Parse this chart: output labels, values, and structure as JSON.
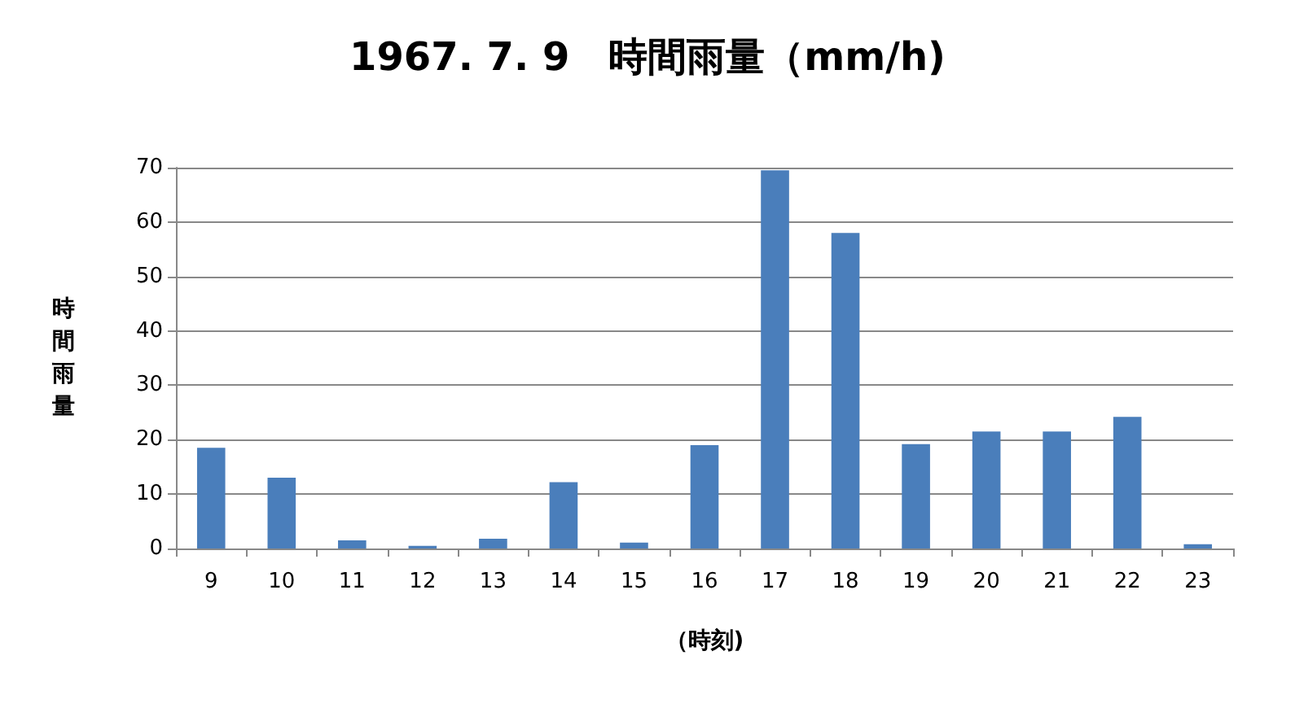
{
  "chart_data": {
    "type": "bar",
    "title": "1967. 7. 9　時間雨量（mm/h)",
    "xlabel": "（時刻)",
    "ylabel": "時間雨量",
    "categories": [
      "9",
      "10",
      "11",
      "12",
      "13",
      "14",
      "15",
      "16",
      "17",
      "18",
      "19",
      "20",
      "21",
      "22",
      "23"
    ],
    "values": [
      18.5,
      13,
      1.5,
      0.5,
      1.8,
      12.2,
      1.1,
      19,
      69.5,
      58,
      19.2,
      21.5,
      21.5,
      24.2,
      0.8
    ],
    "color": "#4a7ebb",
    "ylim": [
      0,
      70
    ],
    "yticks": [
      0,
      10,
      20,
      30,
      40,
      50,
      60,
      70
    ],
    "grid": "y"
  }
}
